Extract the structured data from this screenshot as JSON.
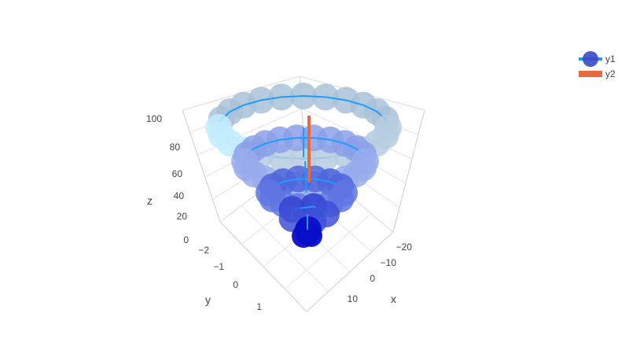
{
  "chart_data": {
    "type": "scatter3d",
    "axes": {
      "x": {
        "title": "x",
        "ticks": [
          "−20",
          "−10",
          "0",
          "10"
        ]
      },
      "y": {
        "title": "y",
        "ticks": [
          "−2",
          "−1",
          "0",
          "1"
        ]
      },
      "z": {
        "title": "z",
        "ticks": [
          "0",
          "20",
          "40",
          "60",
          "80",
          "100"
        ]
      }
    },
    "legend": {
      "placement": "top-right",
      "items": [
        {
          "name": "y1",
          "symbol": "marker+line"
        },
        {
          "name": "y2",
          "symbol": "bar"
        }
      ]
    },
    "series": [
      {
        "name": "y1",
        "mode": "lines+markers",
        "line_color": "#1f9cff",
        "marker_colorscale": [
          "#0000c8",
          "#6a7fe6",
          "#9fb8f0",
          "#b8d4ee",
          "#c8f0ff"
        ],
        "rings": [
          {
            "z": 100,
            "x_radius": 12,
            "points": 24
          },
          {
            "z": 80,
            "x_radius": 9,
            "points": 22
          },
          {
            "z": 40,
            "x_radius": 5,
            "points": 14
          },
          {
            "z": 10,
            "x_radius": 2,
            "points": 5
          }
        ]
      },
      {
        "name": "y2",
        "mode": "lines",
        "line_color": "#e8693f",
        "segment": {
          "from": {
            "x": 0,
            "y": 0,
            "z": 0
          },
          "to": {
            "x": 0,
            "y": 0,
            "z": 100
          }
        }
      }
    ],
    "grid": true
  }
}
